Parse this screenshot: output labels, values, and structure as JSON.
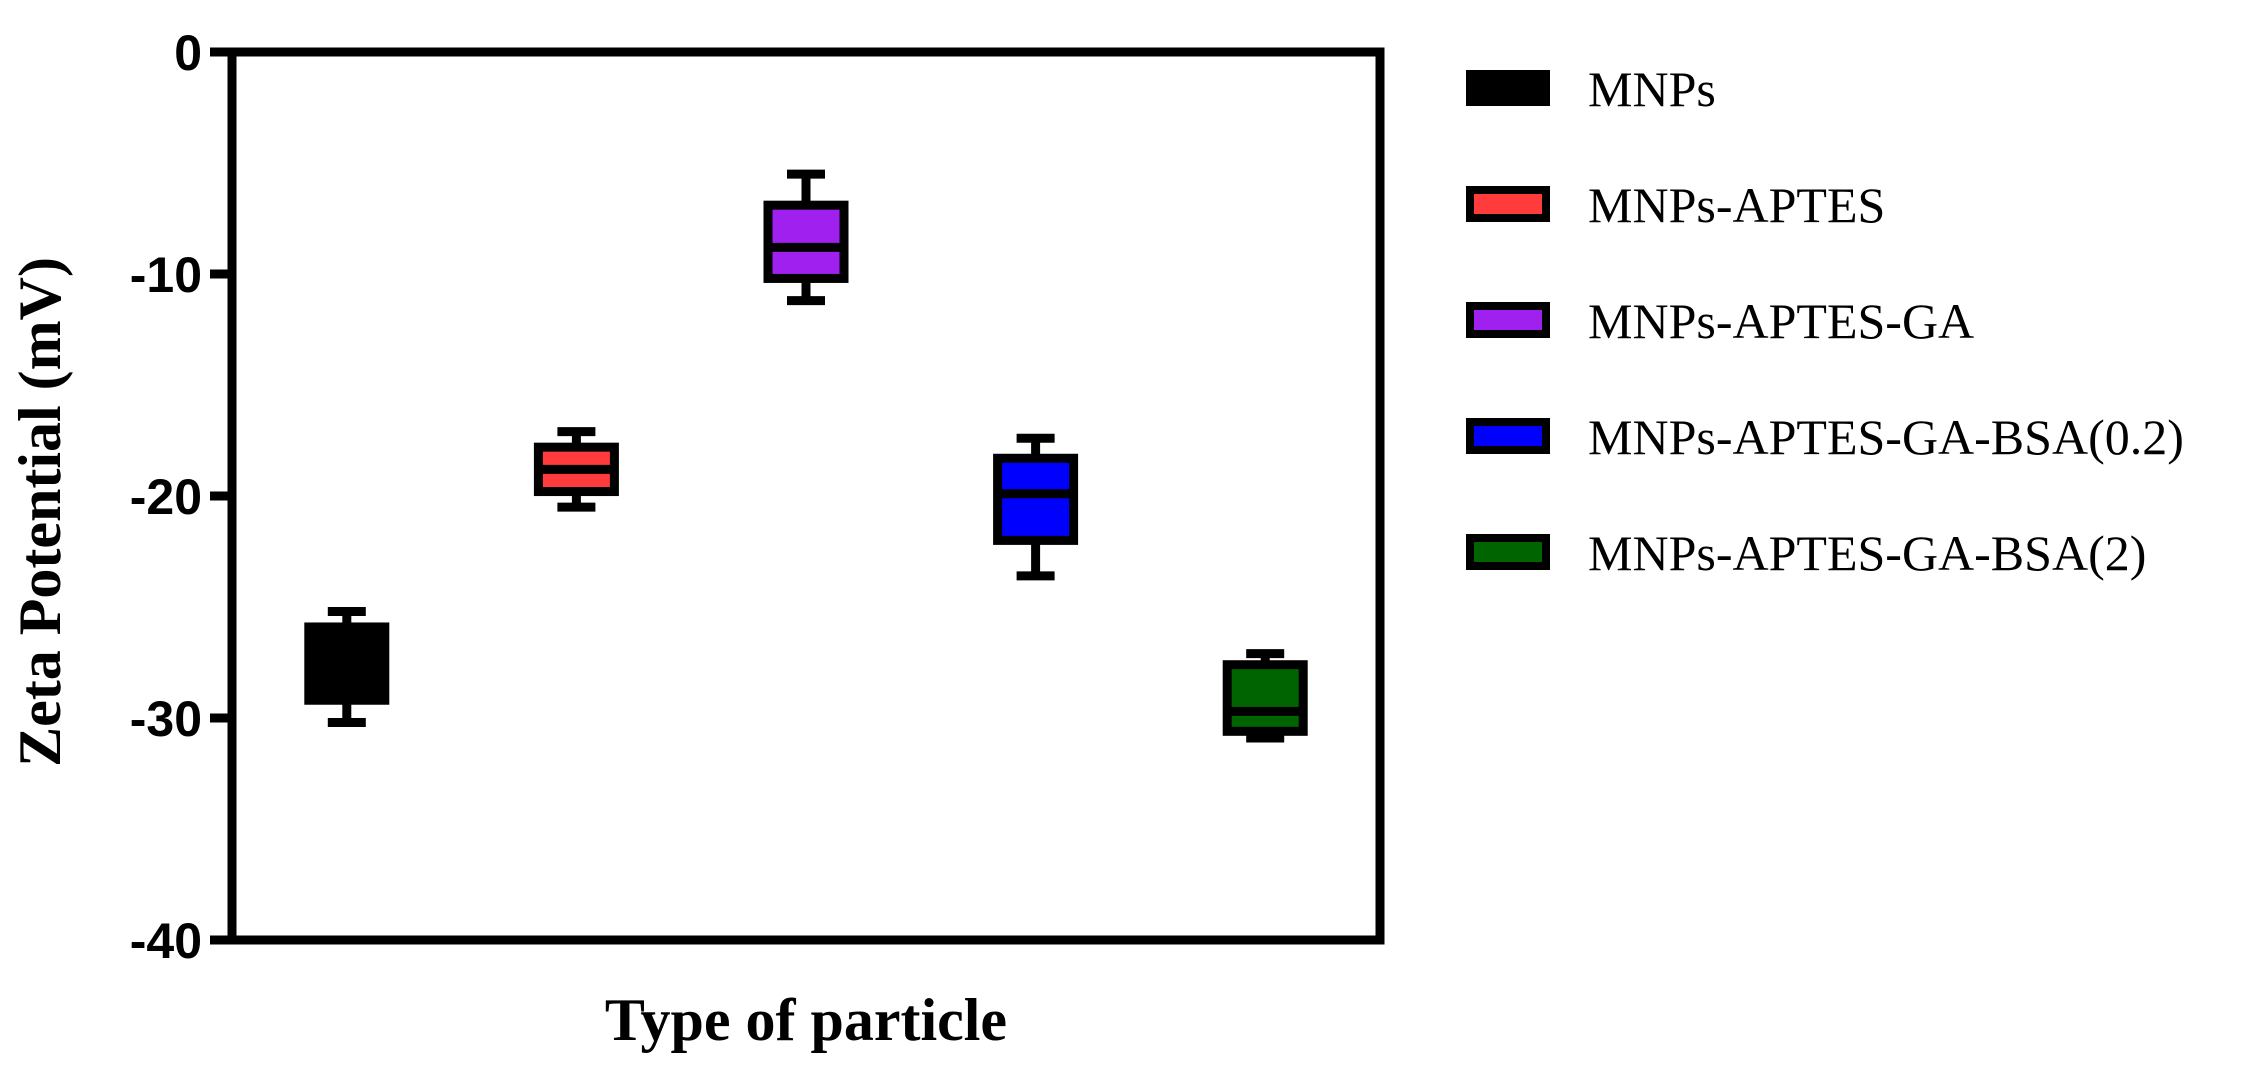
{
  "chart_data": {
    "type": "box",
    "title": "",
    "xlabel": "Type of particle",
    "ylabel": "Zeta Potential (mV)",
    "ylim": [
      -40,
      0
    ],
    "yticks": [
      0,
      -10,
      -20,
      -30,
      -40
    ],
    "ytick_labels": [
      "0",
      "-10",
      "-20",
      "-30",
      "-40"
    ],
    "grid": false,
    "legend_position": "right",
    "series": [
      {
        "name": "MNPs",
        "color": "#000000",
        "min": -30.2,
        "q1": -29.2,
        "median": -27.5,
        "q3": -25.9,
        "max": -25.2
      },
      {
        "name": "MNPs-APTES",
        "color": "#ff3b3b",
        "min": -20.5,
        "q1": -19.8,
        "median": -18.8,
        "q3": -17.8,
        "max": -17.1
      },
      {
        "name": "MNPs-APTES-GA",
        "color": "#a020f0",
        "min": -11.2,
        "q1": -10.2,
        "median": -8.8,
        "q3": -6.9,
        "max": -5.5
      },
      {
        "name": "MNPs-APTES-GA-BSA(0.2)",
        "color": "#0000ff",
        "min": -23.6,
        "q1": -22.0,
        "median": -19.9,
        "q3": -18.3,
        "max": -17.4
      },
      {
        "name": "MNPs-APTES-GA-BSA(2)",
        "color": "#006400",
        "min": -30.9,
        "q1": -30.6,
        "median": -29.7,
        "q3": -27.6,
        "max": -27.1
      }
    ]
  }
}
